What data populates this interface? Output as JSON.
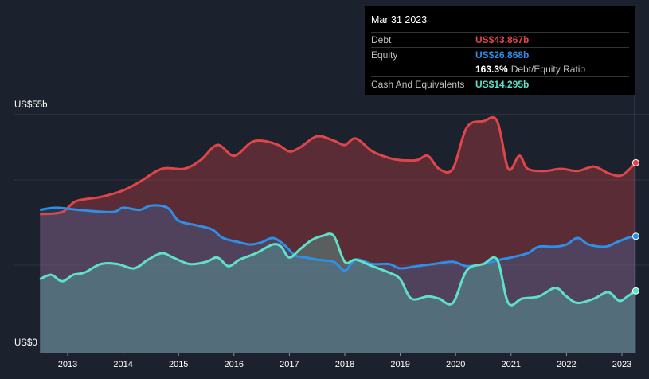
{
  "tooltip": {
    "date": "Mar 31 2023",
    "debt_label": "Debt",
    "debt_value": "US$43.867b",
    "equity_label": "Equity",
    "equity_value": "US$26.868b",
    "ratio_value": "163.3%",
    "ratio_label": "Debt/Equity Ratio",
    "cash_label": "Cash And Equivalents",
    "cash_value": "US$14.295b"
  },
  "y_axis": {
    "top_label": "US$55b",
    "bottom_label": "US$0"
  },
  "colors": {
    "debt": "#e0454a",
    "equity": "#2f8ee6",
    "cash": "#5fe0c8",
    "background": "#1b222d"
  },
  "chart_data": {
    "type": "area",
    "ylim": [
      0,
      55
    ],
    "x_ticks": [
      "2013",
      "2014",
      "2015",
      "2016",
      "2017",
      "2018",
      "2019",
      "2020",
      "2021",
      "2022",
      "2023"
    ],
    "series": [
      {
        "name": "Debt",
        "color": "#e0454a",
        "points": [
          [
            2012.5,
            32.0
          ],
          [
            2012.9,
            32.5
          ],
          [
            2013.15,
            35.0
          ],
          [
            2013.6,
            36.0
          ],
          [
            2014.0,
            37.5
          ],
          [
            2014.3,
            39.5
          ],
          [
            2014.7,
            42.5
          ],
          [
            2015.1,
            42.5
          ],
          [
            2015.4,
            44.5
          ],
          [
            2015.7,
            48.0
          ],
          [
            2016.0,
            45.5
          ],
          [
            2016.3,
            48.5
          ],
          [
            2016.5,
            49.0
          ],
          [
            2016.8,
            48.0
          ],
          [
            2017.0,
            46.5
          ],
          [
            2017.2,
            47.5
          ],
          [
            2017.5,
            50.0
          ],
          [
            2017.8,
            49.0
          ],
          [
            2018.0,
            48.0
          ],
          [
            2018.2,
            49.5
          ],
          [
            2018.5,
            46.5
          ],
          [
            2018.8,
            45.0
          ],
          [
            2019.0,
            44.5
          ],
          [
            2019.3,
            44.5
          ],
          [
            2019.5,
            45.5
          ],
          [
            2019.7,
            42.5
          ],
          [
            2019.95,
            42.5
          ],
          [
            2020.2,
            52.0
          ],
          [
            2020.5,
            53.5
          ],
          [
            2020.75,
            53.5
          ],
          [
            2020.95,
            42.5
          ],
          [
            2021.15,
            45.5
          ],
          [
            2021.3,
            42.5
          ],
          [
            2021.6,
            42.0
          ],
          [
            2021.9,
            42.5
          ],
          [
            2022.2,
            42.0
          ],
          [
            2022.5,
            43.0
          ],
          [
            2022.75,
            41.5
          ],
          [
            2023.0,
            41.0
          ],
          [
            2023.25,
            43.9
          ]
        ]
      },
      {
        "name": "Equity",
        "color": "#2f8ee6",
        "points": [
          [
            2012.5,
            33.0
          ],
          [
            2012.8,
            33.5
          ],
          [
            2013.2,
            33.0
          ],
          [
            2013.8,
            32.5
          ],
          [
            2014.0,
            33.5
          ],
          [
            2014.3,
            33.0
          ],
          [
            2014.5,
            34.0
          ],
          [
            2014.8,
            33.5
          ],
          [
            2015.0,
            30.5
          ],
          [
            2015.3,
            29.5
          ],
          [
            2015.6,
            28.5
          ],
          [
            2015.8,
            26.5
          ],
          [
            2016.1,
            25.5
          ],
          [
            2016.3,
            25.0
          ],
          [
            2016.5,
            25.5
          ],
          [
            2016.7,
            26.5
          ],
          [
            2016.9,
            25.0
          ],
          [
            2017.1,
            22.5
          ],
          [
            2017.3,
            22.0
          ],
          [
            2017.5,
            21.5
          ],
          [
            2017.8,
            21.0
          ],
          [
            2018.0,
            19.0
          ],
          [
            2018.2,
            21.5
          ],
          [
            2018.5,
            20.5
          ],
          [
            2018.8,
            20.5
          ],
          [
            2019.0,
            19.5
          ],
          [
            2019.3,
            20.0
          ],
          [
            2019.6,
            20.5
          ],
          [
            2019.95,
            21.0
          ],
          [
            2020.2,
            20.0
          ],
          [
            2020.5,
            20.5
          ],
          [
            2020.8,
            21.5
          ],
          [
            2021.0,
            22.0
          ],
          [
            2021.3,
            23.0
          ],
          [
            2021.5,
            24.5
          ],
          [
            2021.8,
            24.5
          ],
          [
            2022.0,
            25.0
          ],
          [
            2022.2,
            26.5
          ],
          [
            2022.4,
            25.0
          ],
          [
            2022.7,
            24.5
          ],
          [
            2022.9,
            25.5
          ],
          [
            2023.1,
            26.5
          ],
          [
            2023.25,
            26.9
          ]
        ]
      },
      {
        "name": "Cash And Equivalents",
        "color": "#5fe0c8",
        "points": [
          [
            2012.5,
            17.0
          ],
          [
            2012.7,
            18.0
          ],
          [
            2012.9,
            16.5
          ],
          [
            2013.1,
            18.0
          ],
          [
            2013.3,
            18.5
          ],
          [
            2013.6,
            20.5
          ],
          [
            2013.9,
            20.5
          ],
          [
            2014.2,
            19.5
          ],
          [
            2014.45,
            21.5
          ],
          [
            2014.7,
            23.0
          ],
          [
            2014.9,
            22.0
          ],
          [
            2015.2,
            20.5
          ],
          [
            2015.5,
            21.0
          ],
          [
            2015.7,
            22.0
          ],
          [
            2015.9,
            20.0
          ],
          [
            2016.1,
            21.5
          ],
          [
            2016.4,
            23.0
          ],
          [
            2016.7,
            25.0
          ],
          [
            2016.85,
            24.5
          ],
          [
            2017.0,
            22.0
          ],
          [
            2017.2,
            24.0
          ],
          [
            2017.4,
            26.0
          ],
          [
            2017.6,
            27.0
          ],
          [
            2017.8,
            27.0
          ],
          [
            2018.0,
            21.0
          ],
          [
            2018.2,
            21.5
          ],
          [
            2018.5,
            20.0
          ],
          [
            2018.8,
            18.5
          ],
          [
            2019.0,
            17.0
          ],
          [
            2019.2,
            12.5
          ],
          [
            2019.5,
            13.0
          ],
          [
            2019.7,
            12.5
          ],
          [
            2019.95,
            11.5
          ],
          [
            2020.2,
            19.0
          ],
          [
            2020.5,
            20.5
          ],
          [
            2020.75,
            21.5
          ],
          [
            2020.95,
            11.5
          ],
          [
            2021.2,
            12.5
          ],
          [
            2021.5,
            13.0
          ],
          [
            2021.8,
            15.0
          ],
          [
            2022.0,
            13.0
          ],
          [
            2022.2,
            11.5
          ],
          [
            2022.5,
            12.5
          ],
          [
            2022.75,
            14.0
          ],
          [
            2022.95,
            12.0
          ],
          [
            2023.1,
            13.0
          ],
          [
            2023.25,
            14.3
          ]
        ]
      }
    ]
  }
}
